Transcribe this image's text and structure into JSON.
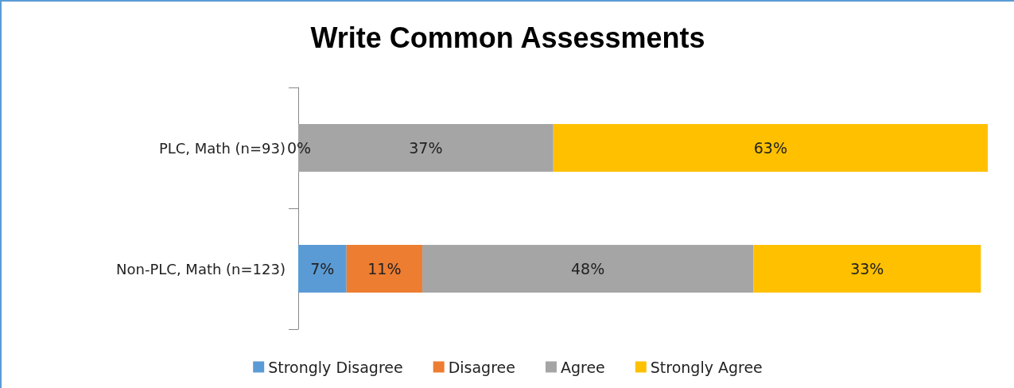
{
  "chart_data": {
    "type": "bar",
    "title": "Write Common Assessments",
    "orientation": "horizontal",
    "stacked": true,
    "legend": "bottom",
    "categories": [
      "PLC, Math (n=93)",
      "Non-PLC, Math (n=123)"
    ],
    "series": [
      {
        "name": "Strongly Disagree",
        "color": "#5b9bd5",
        "values": [
          0,
          7
        ],
        "value_labels": [
          "0%",
          "7%"
        ]
      },
      {
        "name": "Disagree",
        "color": "#ed7d31",
        "values": [
          0,
          11
        ],
        "value_labels": [
          null,
          "11%"
        ]
      },
      {
        "name": "Agree",
        "color": "#a5a5a5",
        "values": [
          37,
          48
        ],
        "value_labels": [
          "37%",
          "48%"
        ]
      },
      {
        "name": "Strongly Agree",
        "color": "#ffc000",
        "values": [
          63,
          33
        ],
        "value_labels": [
          "63%",
          "33%"
        ]
      }
    ]
  }
}
